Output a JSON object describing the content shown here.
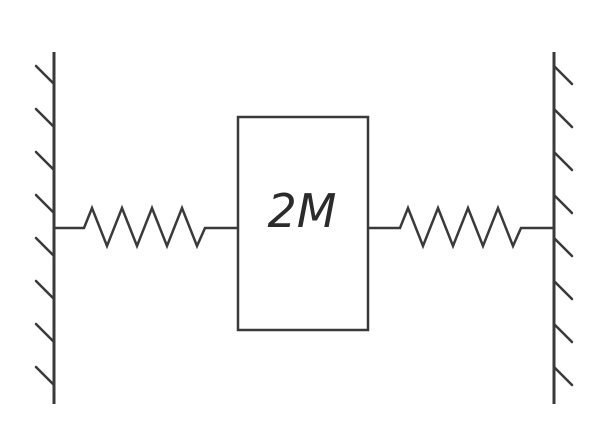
{
  "diagram": {
    "mass": {
      "label": "2M"
    },
    "colors": {
      "line": "#3a3a3a",
      "background": "#ffffff"
    }
  }
}
